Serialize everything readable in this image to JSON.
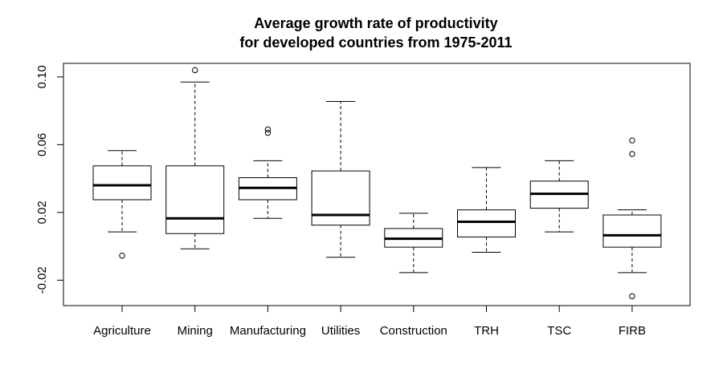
{
  "chart_data": {
    "type": "boxplot",
    "title": [
      "Average growth rate of productivity",
      "for developed countries from 1975-2011"
    ],
    "xlabel": "",
    "ylabel": "",
    "ylim": [
      -0.035,
      0.108
    ],
    "y_ticks": [
      -0.02,
      0.02,
      0.06,
      0.1
    ],
    "y_tick_labels": [
      "-0.02",
      "0.02",
      "0.06",
      "0.10"
    ],
    "grid": false,
    "categories": [
      "Agriculture",
      "Mining",
      "Manufacturing",
      "Utilities",
      "Construction",
      "TRH",
      "TSC",
      "FIRB"
    ],
    "boxes": [
      {
        "category": "Agriculture",
        "whisker_low": 0.0085,
        "q1": 0.0275,
        "median": 0.036,
        "q3": 0.0475,
        "whisker_high": 0.0565,
        "outliers": [
          -0.0055
        ]
      },
      {
        "category": "Mining",
        "whisker_low": -0.0015,
        "q1": 0.0075,
        "median": 0.0165,
        "q3": 0.0475,
        "whisker_high": 0.097,
        "outliers": [
          0.104
        ]
      },
      {
        "category": "Manufacturing",
        "whisker_low": 0.0165,
        "q1": 0.0275,
        "median": 0.0345,
        "q3": 0.0405,
        "whisker_high": 0.0505,
        "outliers": [
          0.069,
          0.067
        ]
      },
      {
        "category": "Utilities",
        "whisker_low": -0.0065,
        "q1": 0.0125,
        "median": 0.0185,
        "q3": 0.0445,
        "whisker_high": 0.0855,
        "outliers": []
      },
      {
        "category": "Construction",
        "whisker_low": -0.0155,
        "q1": -0.0005,
        "median": 0.0045,
        "q3": 0.0105,
        "whisker_high": 0.0195,
        "outliers": []
      },
      {
        "category": "TRH",
        "whisker_low": -0.0035,
        "q1": 0.0055,
        "median": 0.0145,
        "q3": 0.0215,
        "whisker_high": 0.0465,
        "outliers": []
      },
      {
        "category": "TSC",
        "whisker_low": 0.0085,
        "q1": 0.0225,
        "median": 0.031,
        "q3": 0.0385,
        "whisker_high": 0.0505,
        "outliers": []
      },
      {
        "category": "FIRB",
        "whisker_low": -0.0155,
        "q1": -0.0005,
        "median": 0.0065,
        "q3": 0.0185,
        "whisker_high": 0.0215,
        "outliers": [
          0.0625,
          0.0545,
          -0.0295
        ]
      }
    ]
  }
}
